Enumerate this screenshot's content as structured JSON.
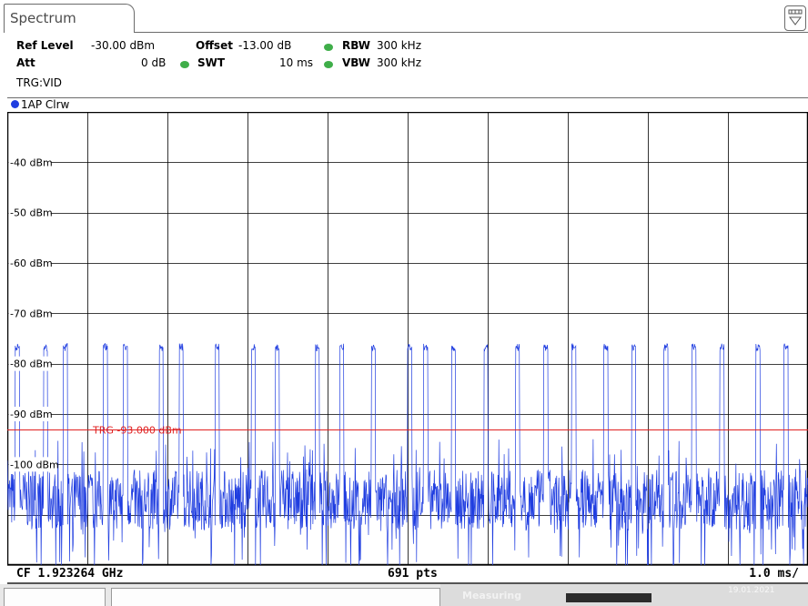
{
  "tab": {
    "label": "Spectrum"
  },
  "header": {
    "ref_level_label": "Ref Level",
    "ref_level_value": "-30.00 dBm",
    "offset_label": "Offset",
    "offset_value": "-13.00 dB",
    "rbw_label": "RBW",
    "rbw_value": "300 kHz",
    "att_label": "Att",
    "att_value": "0 dB",
    "swt_label": "SWT",
    "swt_value": "10 ms",
    "vbw_label": "VBW",
    "vbw_value": "300 kHz",
    "trigger": "TRG:VID",
    "indicator_color": "#3fae49"
  },
  "trace": {
    "label": "1AP Clrw",
    "color": "#1f3de0"
  },
  "footer": {
    "cf": "CF 1.923264 GHz",
    "points": "691 pts",
    "span": "1.0 ms/"
  },
  "status": {
    "measuring": "Measuring",
    "date": "19.01.2021"
  },
  "chart_data": {
    "type": "line",
    "ylim": [
      -120,
      -30
    ],
    "y_ticks": [
      -40,
      -50,
      -60,
      -70,
      -80,
      -90,
      -100
    ],
    "tick_labels": [
      "-40 dBm",
      "-50 dBm",
      "-60 dBm",
      "-70 dBm",
      "-80 dBm",
      "-90 dBm",
      "-100 dBm"
    ],
    "x_divisions": 10,
    "grid": true,
    "trigger_line": {
      "value": -93,
      "label": "TRG -93.000 dBm",
      "color": "#e02020"
    },
    "series": [
      {
        "noise_floor_dbm": -107,
        "noise_spread_db": 6,
        "pulse_level_dbm": -76,
        "pulse_times_ms": [
          0.1,
          0.45,
          0.7,
          1.2,
          1.45,
          1.9,
          2.15,
          2.6,
          3.05,
          3.35,
          3.85,
          4.15,
          4.55,
          5.0,
          5.2,
          5.55,
          5.95,
          6.35,
          6.7,
          7.05,
          7.45,
          7.8,
          8.2,
          8.55,
          8.9,
          9.35,
          9.7
        ],
        "pulse_width_ms": 0.05
      }
    ]
  }
}
